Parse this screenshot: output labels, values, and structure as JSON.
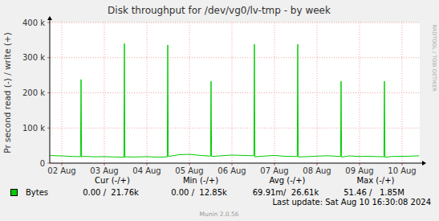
{
  "chart_data": {
    "type": "line",
    "title": "Disk throughput for /dev/vg0/lv-tmp - by week",
    "y_label": "Pr second read (-) / write (+)",
    "x": [
      1.72,
      1.75,
      2.0,
      2.25,
      2.44,
      2.453,
      2.465,
      2.5,
      2.75,
      3.0,
      3.25,
      3.46,
      3.472,
      3.484,
      3.5,
      3.75,
      4.0,
      4.25,
      4.48,
      4.491,
      4.503,
      4.75,
      5.0,
      5.25,
      5.497,
      5.509,
      5.521,
      5.75,
      6.0,
      6.25,
      6.516,
      6.528,
      6.54,
      6.75,
      7.0,
      7.25,
      7.535,
      7.547,
      7.559,
      7.75,
      8.0,
      8.25,
      8.554,
      8.566,
      8.578,
      8.75,
      9.0,
      9.25,
      9.573,
      9.585,
      9.597,
      9.75,
      10.0,
      10.25,
      10.4
    ],
    "series": [
      {
        "name": "Bytes",
        "color": "#00cc00",
        "values": [
          22000,
          21500,
          20500,
          19000,
          18500,
          238000,
          17000,
          19500,
          18000,
          18500,
          17500,
          17000,
          340000,
          16000,
          18000,
          17500,
          18500,
          17000,
          18000,
          336000,
          19000,
          24000,
          25000,
          22000,
          20000,
          233000,
          19000,
          21000,
          23000,
          22000,
          21000,
          338000,
          18000,
          20000,
          22000,
          19500,
          19000,
          338000,
          17500,
          18500,
          20000,
          21000,
          19000,
          233000,
          17000,
          20500,
          19000,
          19500,
          18000,
          233000,
          16500,
          19000,
          19500,
          20000,
          21000
        ]
      }
    ],
    "xlim": [
      1.717,
      10.415
    ],
    "xticks": [
      {
        "value": 2,
        "label": "02 Aug"
      },
      {
        "value": 3,
        "label": "03 Aug"
      },
      {
        "value": 4,
        "label": "04 Aug"
      },
      {
        "value": 5,
        "label": "05 Aug"
      },
      {
        "value": 6,
        "label": "06 Aug"
      },
      {
        "value": 7,
        "label": "07 Aug"
      },
      {
        "value": 8,
        "label": "08 Aug"
      },
      {
        "value": 9,
        "label": "09 Aug"
      },
      {
        "value": 10,
        "label": "10 Aug"
      }
    ],
    "ylim": [
      0,
      400000
    ],
    "yticks": [
      0,
      {
        "value": 100000,
        "label": "100 k"
      },
      {
        "value": 200000,
        "label": "200 k"
      },
      {
        "value": 300000,
        "label": "300 k"
      },
      {
        "value": 400000,
        "label": "400 k"
      }
    ],
    "grid": true,
    "legend_stats": {
      "headers": [
        "Cur (-/+)",
        "Min (-/+)",
        "Avg (-/+)",
        "Max (-/+)"
      ],
      "values": [
        "0.00 /  21.76k",
        "0.00 /  12.85k",
        "69.91m/  26.61k",
        "51.46 /   1.85M"
      ]
    },
    "watermark": "RRDTOOL / TOBI OETIKER",
    "footer": "Last update: Sat Aug 10 16:30:08 2024",
    "version": "Munin 2.0.56"
  }
}
